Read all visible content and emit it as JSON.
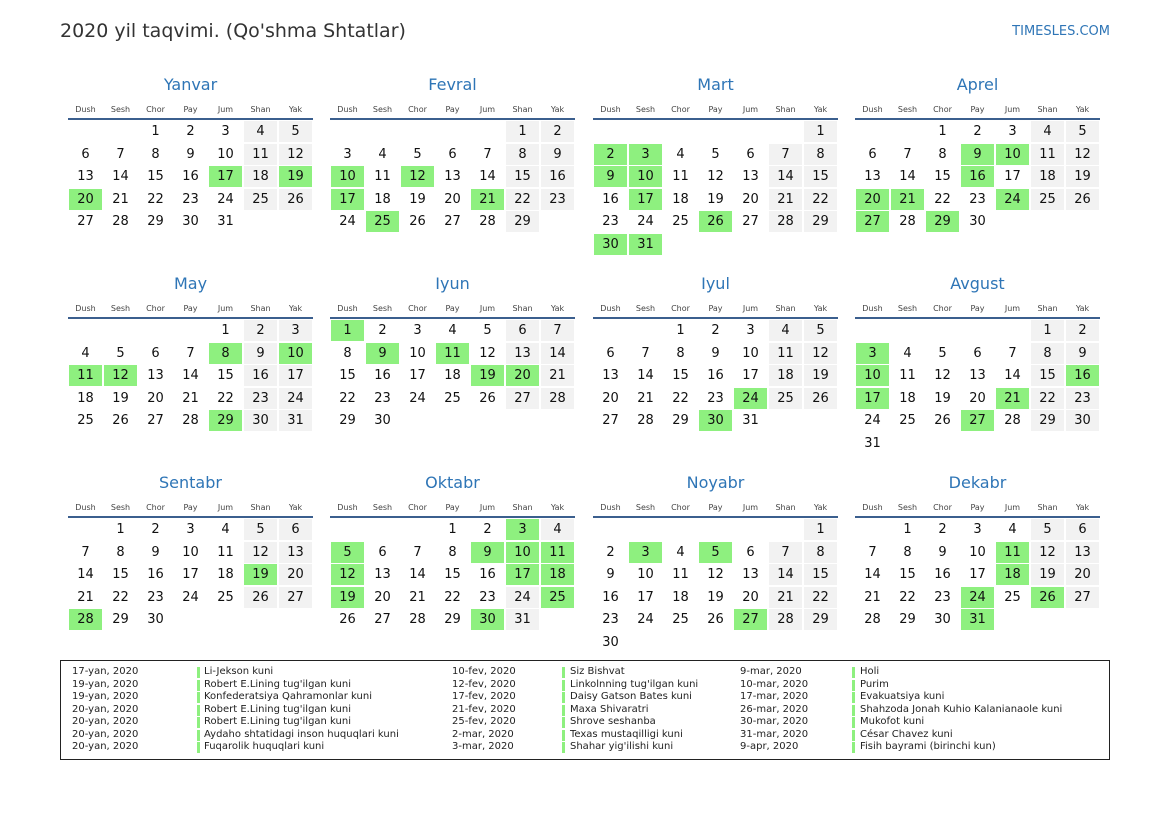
{
  "title": "2020 yil taqvimi. (Qo'shma Shtatlar)",
  "site": "TIMESLES.COM",
  "weekdays": [
    "Dush",
    "Sesh",
    "Chor",
    "Pay",
    "Jum",
    "Shan",
    "Yak"
  ],
  "months": [
    {
      "name": "Yanvar",
      "weeks": [
        [
          null,
          null,
          1,
          2,
          3,
          4,
          5
        ],
        [
          6,
          7,
          8,
          9,
          10,
          11,
          12
        ],
        [
          13,
          14,
          15,
          16,
          17,
          18,
          19
        ],
        [
          20,
          21,
          22,
          23,
          24,
          25,
          26
        ],
        [
          27,
          28,
          29,
          30,
          31
        ]
      ],
      "holidays": [
        17,
        19,
        20
      ]
    },
    {
      "name": "Fevral",
      "weeks": [
        [
          null,
          null,
          null,
          null,
          null,
          1,
          2
        ],
        [
          3,
          4,
          5,
          6,
          7,
          8,
          9
        ],
        [
          10,
          11,
          12,
          13,
          14,
          15,
          16
        ],
        [
          17,
          18,
          19,
          20,
          21,
          22,
          23
        ],
        [
          24,
          25,
          26,
          27,
          28,
          29
        ]
      ],
      "holidays": [
        10,
        12,
        17,
        21,
        25
      ]
    },
    {
      "name": "Mart",
      "weeks": [
        [
          null,
          null,
          null,
          null,
          null,
          null,
          1
        ],
        [
          2,
          3,
          4,
          5,
          6,
          7,
          8
        ],
        [
          9,
          10,
          11,
          12,
          13,
          14,
          15
        ],
        [
          16,
          17,
          18,
          19,
          20,
          21,
          22
        ],
        [
          23,
          24,
          25,
          26,
          27,
          28,
          29
        ],
        [
          30,
          31
        ]
      ],
      "holidays": [
        2,
        3,
        9,
        10,
        17,
        26,
        30,
        31
      ]
    },
    {
      "name": "Aprel",
      "weeks": [
        [
          null,
          null,
          1,
          2,
          3,
          4,
          5
        ],
        [
          6,
          7,
          8,
          9,
          10,
          11,
          12
        ],
        [
          13,
          14,
          15,
          16,
          17,
          18,
          19
        ],
        [
          20,
          21,
          22,
          23,
          24,
          25,
          26
        ],
        [
          27,
          28,
          29,
          30
        ]
      ],
      "holidays": [
        9,
        10,
        16,
        20,
        21,
        24,
        27,
        29
      ]
    },
    {
      "name": "May",
      "weeks": [
        [
          null,
          null,
          null,
          null,
          1,
          2,
          3
        ],
        [
          4,
          5,
          6,
          7,
          8,
          9,
          10
        ],
        [
          11,
          12,
          13,
          14,
          15,
          16,
          17
        ],
        [
          18,
          19,
          20,
          21,
          22,
          23,
          24
        ],
        [
          25,
          26,
          27,
          28,
          29,
          30,
          31
        ]
      ],
      "holidays": [
        8,
        10,
        11,
        12,
        29
      ]
    },
    {
      "name": "Iyun",
      "weeks": [
        [
          1,
          2,
          3,
          4,
          5,
          6,
          7
        ],
        [
          8,
          9,
          10,
          11,
          12,
          13,
          14
        ],
        [
          15,
          16,
          17,
          18,
          19,
          20,
          21
        ],
        [
          22,
          23,
          24,
          25,
          26,
          27,
          28
        ],
        [
          29,
          30
        ]
      ],
      "holidays": [
        1,
        9,
        11,
        19,
        20
      ]
    },
    {
      "name": "Iyul",
      "weeks": [
        [
          null,
          null,
          1,
          2,
          3,
          4,
          5
        ],
        [
          6,
          7,
          8,
          9,
          10,
          11,
          12
        ],
        [
          13,
          14,
          15,
          16,
          17,
          18,
          19
        ],
        [
          20,
          21,
          22,
          23,
          24,
          25,
          26
        ],
        [
          27,
          28,
          29,
          30,
          31
        ]
      ],
      "holidays": [
        24,
        30
      ]
    },
    {
      "name": "Avgust",
      "weeks": [
        [
          null,
          null,
          null,
          null,
          null,
          1,
          2
        ],
        [
          3,
          4,
          5,
          6,
          7,
          8,
          9
        ],
        [
          10,
          11,
          12,
          13,
          14,
          15,
          16
        ],
        [
          17,
          18,
          19,
          20,
          21,
          22,
          23
        ],
        [
          24,
          25,
          26,
          27,
          28,
          29,
          30
        ],
        [
          31
        ]
      ],
      "holidays": [
        3,
        10,
        16,
        17,
        21,
        27
      ]
    },
    {
      "name": "Sentabr",
      "weeks": [
        [
          null,
          1,
          2,
          3,
          4,
          5,
          6
        ],
        [
          7,
          8,
          9,
          10,
          11,
          12,
          13
        ],
        [
          14,
          15,
          16,
          17,
          18,
          19,
          20
        ],
        [
          21,
          22,
          23,
          24,
          25,
          26,
          27
        ],
        [
          28,
          29,
          30
        ]
      ],
      "holidays": [
        19,
        28
      ]
    },
    {
      "name": "Oktabr",
      "weeks": [
        [
          null,
          null,
          null,
          1,
          2,
          3,
          4
        ],
        [
          5,
          6,
          7,
          8,
          9,
          10,
          11
        ],
        [
          12,
          13,
          14,
          15,
          16,
          17,
          18
        ],
        [
          19,
          20,
          21,
          22,
          23,
          24,
          25
        ],
        [
          26,
          27,
          28,
          29,
          30,
          31
        ]
      ],
      "holidays": [
        3,
        5,
        9,
        10,
        11,
        12,
        17,
        18,
        19,
        25,
        30
      ]
    },
    {
      "name": "Noyabr",
      "weeks": [
        [
          null,
          null,
          null,
          null,
          null,
          null,
          1
        ],
        [
          2,
          3,
          4,
          5,
          6,
          7,
          8
        ],
        [
          9,
          10,
          11,
          12,
          13,
          14,
          15
        ],
        [
          16,
          17,
          18,
          19,
          20,
          21,
          22
        ],
        [
          23,
          24,
          25,
          26,
          27,
          28,
          29
        ],
        [
          30
        ]
      ],
      "holidays": [
        3,
        5,
        27
      ]
    },
    {
      "name": "Dekabr",
      "weeks": [
        [
          null,
          1,
          2,
          3,
          4,
          5,
          6
        ],
        [
          7,
          8,
          9,
          10,
          11,
          12,
          13
        ],
        [
          14,
          15,
          16,
          17,
          18,
          19,
          20
        ],
        [
          21,
          22,
          23,
          24,
          25,
          26,
          27
        ],
        [
          28,
          29,
          30,
          31
        ]
      ],
      "holidays": [
        11,
        18,
        24,
        26,
        31
      ]
    }
  ],
  "holiday_list": [
    [
      [
        "17-yan, 2020",
        "Li-Jekson kuni"
      ],
      [
        "19-yan, 2020",
        "Robert E.Lining tug'ilgan kuni"
      ],
      [
        "19-yan, 2020",
        "Konfederatsiya Qahramonlar kuni"
      ],
      [
        "20-yan, 2020",
        "Robert E.Lining tug'ilgan kuni"
      ],
      [
        "20-yan, 2020",
        "Robert E.Lining tug'ilgan kuni"
      ],
      [
        "20-yan, 2020",
        "Aydaho shtatidagi inson huquqlari kuni"
      ],
      [
        "20-yan, 2020",
        "Fuqarolik huquqlari kuni"
      ]
    ],
    [
      [
        "10-fev, 2020",
        "Siz Bishvat"
      ],
      [
        "12-fev, 2020",
        "Linkolnning tug'ilgan kuni"
      ],
      [
        "17-fev, 2020",
        "Daisy Gatson Bates kuni"
      ],
      [
        "21-fev, 2020",
        "Maxa Shivaratri"
      ],
      [
        "25-fev, 2020",
        "Shrove seshanba"
      ],
      [
        "2-mar, 2020",
        "Texas mustaqilligi kuni"
      ],
      [
        "3-mar, 2020",
        "Shahar yig'ilishi kuni"
      ]
    ],
    [
      [
        "9-mar, 2020",
        "Holi"
      ],
      [
        "10-mar, 2020",
        "Purim"
      ],
      [
        "17-mar, 2020",
        "Evakuatsiya kuni"
      ],
      [
        "26-mar, 2020",
        "Shahzoda Jonah Kuhio Kalanianaole kuni"
      ],
      [
        "30-mar, 2020",
        "Mukofot kuni"
      ],
      [
        "31-mar, 2020",
        "César Chavez kuni"
      ],
      [
        "9-apr, 2020",
        "Fisih bayrami (birinchi kun)"
      ]
    ]
  ]
}
